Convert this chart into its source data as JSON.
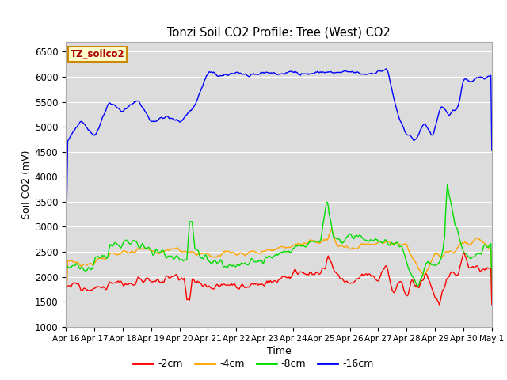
{
  "title": "Tonzi Soil CO2 Profile: Tree (West) CO2",
  "xlabel": "Time",
  "ylabel": "Soil CO2 (mV)",
  "ylim": [
    1000,
    6700
  ],
  "yticks": [
    1000,
    1500,
    2000,
    2500,
    3000,
    3500,
    4000,
    4500,
    5000,
    5500,
    6000,
    6500
  ],
  "plot_bg_color": "#dcdcdc",
  "fig_bg_color": "#ffffff",
  "legend_label": "TZ_soilco2",
  "legend_box_color": "#ffffcc",
  "legend_box_edge": "#cc8800",
  "series_labels": [
    "-2cm",
    "-4cm",
    "-8cm",
    "-16cm"
  ],
  "series_colors": [
    "#ff0000",
    "#ffa500",
    "#00dd00",
    "#0000ff"
  ],
  "xtick_labels": [
    "Apr 16",
    "Apr 17",
    "Apr 18",
    "Apr 19",
    "Apr 20",
    "Apr 21",
    "Apr 22",
    "Apr 23",
    "Apr 24",
    "Apr 25",
    "Apr 26",
    "Apr 27",
    "Apr 28",
    "Apr 29",
    "Apr 30",
    "May 1"
  ],
  "n_points": 480,
  "line_width": 1.0
}
